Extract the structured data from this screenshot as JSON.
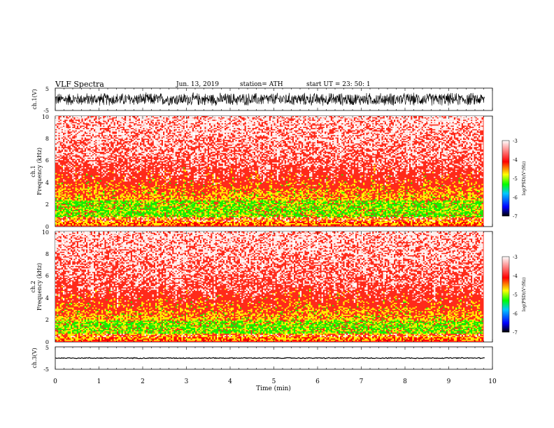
{
  "header": {
    "title": "VLF  Spectra",
    "date": "Jun. 13, 2019",
    "station": "station= ATH",
    "start": "start  UT  =    23: 50: 1"
  },
  "chart_data": [
    {
      "type": "line",
      "ylabel": "ch.1(V)",
      "ylim": [
        -5,
        5
      ],
      "yticks": [
        "5",
        "-5"
      ],
      "trace": {
        "mean": 0.0,
        "amplitude": 3.2,
        "color": "#000000"
      }
    },
    {
      "type": "heatmap",
      "ylabel_line1": "ch.1",
      "ylabel_line2": "Frequency  (kHz)",
      "ylim": [
        0,
        10
      ],
      "yticks": [
        "0",
        "2",
        "4",
        "6",
        "8",
        "10"
      ],
      "xlim": [
        0,
        9.8
      ],
      "bands": {
        "green_low": 0.8,
        "green_high": 2.3,
        "yellow_top": 3.5
      }
    },
    {
      "type": "heatmap",
      "ylabel_line1": "ch.2",
      "ylabel_line2": "Frequency  (kHz)",
      "ylim": [
        0,
        10
      ],
      "yticks": [
        "0",
        "2",
        "4",
        "6",
        "8",
        "10"
      ],
      "xlim": [
        0,
        9.8
      ],
      "bands": {
        "green_low": 0.6,
        "green_high": 1.9,
        "yellow_top": 3.0
      }
    },
    {
      "type": "line",
      "ylabel": "ch.3(V)",
      "ylim": [
        -5,
        5
      ],
      "yticks": [
        "5",
        "-5"
      ],
      "trace": {
        "mean": 0.0,
        "amplitude": 0.25,
        "color": "#000000"
      }
    }
  ],
  "xaxis": {
    "label": "Time  (min)",
    "ticks": [
      "0",
      "1",
      "2",
      "3",
      "4",
      "5",
      "6",
      "7",
      "8",
      "9",
      "10"
    ],
    "xlim": [
      0,
      10
    ]
  },
  "colorbar": {
    "label": "log(PSD)(V²/Hz)",
    "ticks": [
      "-3",
      "-4",
      "-5",
      "-6",
      "-7"
    ],
    "range": [
      -7,
      -3
    ],
    "stops": [
      "#000000",
      "#0000ff",
      "#00c8ff",
      "#00ff00",
      "#ffff00",
      "#ff0000",
      "#ffffff"
    ]
  }
}
